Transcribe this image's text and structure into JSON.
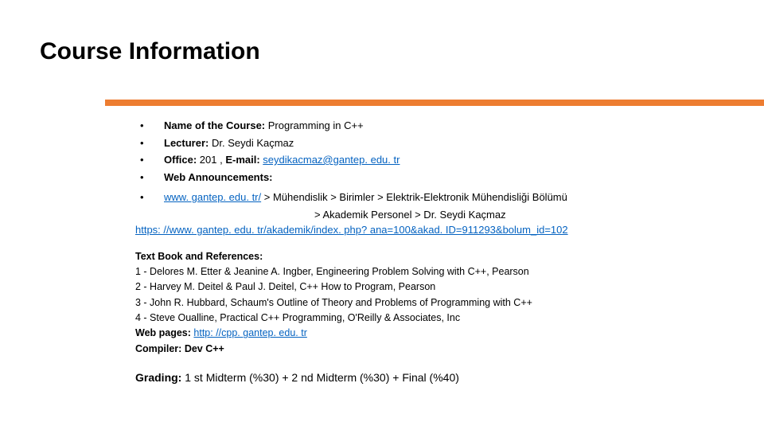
{
  "title": "Course Information",
  "bullets": {
    "b1_label": "Name of the Course:",
    "b1_value": " Programming in C++",
    "b2_label": "Lecturer:",
    "b2_value": " Dr. Seydi Kaçmaz",
    "b3_label": "Office:",
    "b3_mid": " 201 , ",
    "b3_label2": "E-mail:",
    "b3_link": "seydikacmaz@gantep. edu. tr",
    "b4_label": "Web Announcements:"
  },
  "nav": {
    "root_link": "www. gantep. edu. tr/",
    "trail1": " > Mühendislik > Birimler > Elektrik-Elektronik Mühendisliği Bölümü",
    "trail2": "> Akademik Personel > Dr. Seydi Kaçmaz",
    "full_url": "https: //www. gantep. edu. tr/akademik/index. php? ana=100&akad. ID=911293&bolum_id=102"
  },
  "refs": {
    "heading": "Text Book and References:",
    "r1": "1 -  Delores M. Etter & Jeanine A. Ingber, Engineering Problem Solving with C++, Pearson",
    "r2": "2 -  Harvey M. Deitel & Paul J. Deitel, C++ How to Program, Pearson",
    "r3": "3 -  John R. Hubbard, Schaum's Outline of Theory and Problems of Programming with C++",
    "r4": "4 -  Steve Oualline, Practical C++ Programming, O'Reilly & Associates, Inc",
    "web_label": "Web pages:  ",
    "web_link": "http: //cpp. gantep. edu. tr",
    "compiler_label": "Compiler:   ",
    "compiler_value": "Dev C++"
  },
  "grading": {
    "label": "Grading:",
    "value": "  1 st Midterm (%30) + 2 nd Midterm (%30) + Final (%40)"
  },
  "colors": {
    "accent": "#ed7d31",
    "link": "#0563c1",
    "text": "#000000",
    "bg": "#ffffff"
  }
}
